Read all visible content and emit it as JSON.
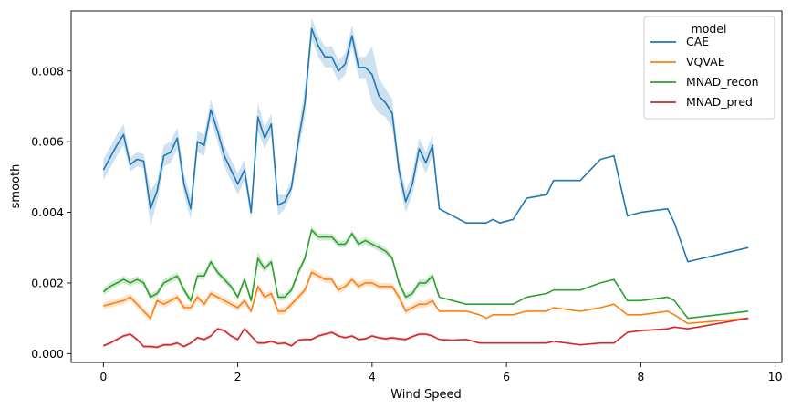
{
  "chart_data": {
    "type": "line",
    "xlabel": "Wind Speed",
    "ylabel": "smooth",
    "xlim": [
      -0.48,
      10.1
    ],
    "ylim": [
      -0.00025,
      0.0097
    ],
    "xticks": [
      0,
      2,
      4,
      6,
      8,
      10
    ],
    "xtick_labels": [
      "0",
      "2",
      "4",
      "6",
      "8",
      "10"
    ],
    "yticks": [
      0.0,
      0.002,
      0.004,
      0.006,
      0.008
    ],
    "ytick_labels": [
      "0.000",
      "0.002",
      "0.004",
      "0.006",
      "0.008"
    ],
    "grid": false,
    "legend": {
      "title": "model",
      "placement": "top-right"
    },
    "series": [
      {
        "name": "CAE",
        "color": "#1f77b4",
        "x": [
          0,
          0.1,
          0.2,
          0.3,
          0.4,
          0.5,
          0.6,
          0.7,
          0.8,
          0.9,
          1.0,
          1.1,
          1.2,
          1.3,
          1.4,
          1.5,
          1.6,
          1.7,
          1.8,
          1.9,
          2.0,
          2.1,
          2.2,
          2.3,
          2.4,
          2.5,
          2.6,
          2.7,
          2.8,
          2.9,
          3.0,
          3.1,
          3.2,
          3.3,
          3.4,
          3.5,
          3.6,
          3.7,
          3.8,
          3.9,
          4.0,
          4.1,
          4.2,
          4.3,
          4.4,
          4.5,
          4.6,
          4.7,
          4.8,
          4.9,
          5.0,
          5.2,
          5.4,
          5.6,
          5.7,
          5.8,
          5.9,
          6.1,
          6.3,
          6.6,
          6.7,
          7.1,
          7.4,
          7.6,
          7.8,
          8.0,
          8.4,
          8.5,
          8.7,
          9.6
        ],
        "y": [
          0.0052,
          0.00555,
          0.0059,
          0.0062,
          0.00535,
          0.0055,
          0.00545,
          0.0041,
          0.0046,
          0.0056,
          0.0057,
          0.0061,
          0.0048,
          0.0041,
          0.006,
          0.0059,
          0.0069,
          0.0063,
          0.0056,
          0.0052,
          0.0048,
          0.0052,
          0.004,
          0.0067,
          0.0061,
          0.0065,
          0.0042,
          0.0043,
          0.0047,
          0.006,
          0.0071,
          0.0092,
          0.0087,
          0.0084,
          0.0084,
          0.008,
          0.0082,
          0.009,
          0.0081,
          0.0081,
          0.0079,
          0.0073,
          0.0071,
          0.0068,
          0.0052,
          0.0043,
          0.0048,
          0.0058,
          0.0054,
          0.0059,
          0.0041,
          0.0039,
          0.0037,
          0.0037,
          0.0037,
          0.0038,
          0.0037,
          0.0038,
          0.0044,
          0.0045,
          0.0049,
          0.0049,
          0.0055,
          0.0056,
          0.0039,
          0.004,
          0.0041,
          0.0037,
          0.0026,
          0.003
        ],
        "band": [
          0.0003,
          0.0003,
          0.0003,
          0.0003,
          0.0002,
          0.0002,
          0.0002,
          0.0005,
          0.0003,
          0.0003,
          0.0003,
          0.0003,
          0.0003,
          0.0003,
          0.0003,
          0.0003,
          0.0003,
          0.0003,
          0.0003,
          0.0003,
          0.0003,
          0.0003,
          0.0002,
          0.0004,
          0.0003,
          0.0003,
          0.0003,
          0.0002,
          0.0002,
          0.0003,
          0.0004,
          0.0003,
          0.0003,
          0.0003,
          0.0003,
          0.0003,
          0.0003,
          0.0003,
          0.0003,
          0.0003,
          0.0008,
          0.0005,
          0.0004,
          0.0004,
          0.0003,
          0.0003,
          0.0003,
          0.0003,
          0.0003,
          0.0003,
          0.0,
          0.0,
          0.0,
          0.0,
          0.0,
          0.0,
          0.0,
          0.0,
          0.0,
          0.0,
          0.0,
          0.0,
          0.0,
          0.0,
          0.0,
          0.0,
          0.0,
          0.0,
          0.0,
          0.0
        ]
      },
      {
        "name": "VQVAE",
        "color": "#ff7f0e",
        "x": [
          0,
          0.1,
          0.2,
          0.3,
          0.4,
          0.5,
          0.6,
          0.7,
          0.8,
          0.9,
          1.0,
          1.1,
          1.2,
          1.3,
          1.4,
          1.5,
          1.6,
          1.7,
          1.8,
          1.9,
          2.0,
          2.1,
          2.2,
          2.3,
          2.4,
          2.5,
          2.6,
          2.7,
          2.8,
          2.9,
          3.0,
          3.1,
          3.2,
          3.3,
          3.4,
          3.5,
          3.6,
          3.7,
          3.8,
          3.9,
          4.0,
          4.1,
          4.2,
          4.3,
          4.4,
          4.5,
          4.6,
          4.7,
          4.8,
          4.9,
          5.0,
          5.2,
          5.4,
          5.6,
          5.7,
          5.8,
          5.9,
          6.1,
          6.3,
          6.6,
          6.7,
          7.1,
          7.4,
          7.6,
          7.8,
          8.0,
          8.4,
          8.5,
          8.7,
          9.6
        ],
        "y": [
          0.00135,
          0.0014,
          0.00145,
          0.0015,
          0.0016,
          0.0014,
          0.0012,
          0.001,
          0.0015,
          0.0014,
          0.0015,
          0.0016,
          0.0013,
          0.0013,
          0.0016,
          0.0014,
          0.0017,
          0.0016,
          0.0015,
          0.0014,
          0.0013,
          0.0015,
          0.0012,
          0.0019,
          0.0016,
          0.0017,
          0.0012,
          0.0012,
          0.0014,
          0.0016,
          0.0018,
          0.0023,
          0.0022,
          0.0021,
          0.0021,
          0.0018,
          0.0019,
          0.0021,
          0.0019,
          0.002,
          0.002,
          0.0019,
          0.0019,
          0.0019,
          0.0016,
          0.0012,
          0.0013,
          0.0014,
          0.0014,
          0.0015,
          0.0012,
          0.0012,
          0.0012,
          0.0011,
          0.001,
          0.0011,
          0.0011,
          0.0011,
          0.0012,
          0.0012,
          0.0013,
          0.0012,
          0.0013,
          0.0014,
          0.0011,
          0.0011,
          0.0012,
          0.0011,
          0.00085,
          0.001
        ],
        "band": [
          0.0001,
          0.0001,
          0.0001,
          0.0001,
          0.0001,
          0.0001,
          0.0001,
          0.0001,
          0.0001,
          0.0001,
          0.0001,
          0.0001,
          0.0001,
          0.0001,
          0.0001,
          0.0001,
          0.0001,
          0.0001,
          0.0001,
          0.0001,
          0.0001,
          0.0001,
          0.0001,
          0.0001,
          0.0001,
          0.0001,
          0.0001,
          0.0001,
          0.0001,
          0.0001,
          0.0001,
          0.0001,
          0.0001,
          0.0001,
          0.0001,
          0.0001,
          0.0001,
          0.0001,
          0.0001,
          0.0001,
          0.0001,
          0.0001,
          0.0001,
          0.0001,
          0.0001,
          0.0001,
          0.0001,
          0.0001,
          0.0001,
          0.0001,
          0.0,
          0.0,
          0.0,
          0.0,
          0.0,
          0.0,
          0.0,
          0.0,
          0.0,
          0.0,
          0.0,
          0.0,
          0.0,
          0.0,
          0.0,
          0.0,
          0.0,
          0.0,
          0.0,
          0.0
        ]
      },
      {
        "name": "MNAD_recon",
        "color": "#2ca02c",
        "x": [
          0,
          0.1,
          0.2,
          0.3,
          0.4,
          0.5,
          0.6,
          0.7,
          0.8,
          0.9,
          1.0,
          1.1,
          1.2,
          1.3,
          1.4,
          1.5,
          1.6,
          1.7,
          1.8,
          1.9,
          2.0,
          2.1,
          2.2,
          2.3,
          2.4,
          2.5,
          2.6,
          2.7,
          2.8,
          2.9,
          3.0,
          3.1,
          3.2,
          3.3,
          3.4,
          3.5,
          3.6,
          3.7,
          3.8,
          3.9,
          4.0,
          4.1,
          4.2,
          4.3,
          4.4,
          4.5,
          4.6,
          4.7,
          4.8,
          4.9,
          5.0,
          5.2,
          5.4,
          5.6,
          5.7,
          5.8,
          5.9,
          6.1,
          6.3,
          6.6,
          6.7,
          7.1,
          7.4,
          7.6,
          7.8,
          8.0,
          8.4,
          8.5,
          8.7,
          9.6
        ],
        "y": [
          0.00175,
          0.0019,
          0.002,
          0.0021,
          0.002,
          0.0021,
          0.002,
          0.0016,
          0.0017,
          0.002,
          0.0021,
          0.0022,
          0.0018,
          0.0015,
          0.0022,
          0.0022,
          0.0026,
          0.0023,
          0.0021,
          0.0019,
          0.0016,
          0.0021,
          0.0015,
          0.0027,
          0.0024,
          0.0026,
          0.0016,
          0.0016,
          0.0018,
          0.0023,
          0.0027,
          0.0035,
          0.0033,
          0.0033,
          0.0033,
          0.0031,
          0.0031,
          0.0034,
          0.0031,
          0.0032,
          0.0031,
          0.003,
          0.0029,
          0.0027,
          0.002,
          0.0016,
          0.0017,
          0.002,
          0.002,
          0.0022,
          0.0016,
          0.0015,
          0.0014,
          0.0014,
          0.0014,
          0.0014,
          0.0014,
          0.0014,
          0.0016,
          0.0017,
          0.0018,
          0.0018,
          0.002,
          0.0021,
          0.0015,
          0.0015,
          0.0016,
          0.0015,
          0.001,
          0.0012
        ],
        "band": [
          0.0001,
          0.0001,
          0.0001,
          0.0001,
          0.0001,
          0.0001,
          0.0001,
          0.0001,
          0.0001,
          0.0001,
          0.0001,
          0.0001,
          0.0001,
          0.0001,
          0.0001,
          0.0001,
          0.0001,
          0.0001,
          0.0001,
          0.0001,
          0.0001,
          0.0001,
          0.0001,
          0.0002,
          0.0001,
          0.0001,
          0.0001,
          0.0001,
          0.0001,
          0.0001,
          0.0001,
          0.0001,
          0.0001,
          0.0001,
          0.0001,
          0.0001,
          0.0001,
          0.0001,
          0.0001,
          0.0001,
          0.0001,
          0.0001,
          0.0001,
          0.0001,
          0.0001,
          0.0001,
          0.0001,
          0.0001,
          0.0001,
          0.0001,
          0.0,
          0.0,
          0.0,
          0.0,
          0.0,
          0.0,
          0.0,
          0.0,
          0.0,
          0.0,
          0.0,
          0.0,
          0.0,
          0.0,
          0.0,
          0.0,
          0.0,
          0.0,
          0.0,
          0.0
        ]
      },
      {
        "name": "MNAD_pred",
        "color": "#d62728",
        "x": [
          0,
          0.1,
          0.2,
          0.3,
          0.4,
          0.5,
          0.6,
          0.7,
          0.8,
          0.9,
          1.0,
          1.1,
          1.2,
          1.3,
          1.4,
          1.5,
          1.6,
          1.7,
          1.8,
          1.9,
          2.0,
          2.1,
          2.2,
          2.3,
          2.4,
          2.5,
          2.6,
          2.7,
          2.8,
          2.9,
          3.0,
          3.1,
          3.2,
          3.3,
          3.4,
          3.5,
          3.6,
          3.7,
          3.8,
          3.9,
          4.0,
          4.1,
          4.2,
          4.3,
          4.4,
          4.5,
          4.6,
          4.7,
          4.8,
          4.9,
          5.0,
          5.2,
          5.4,
          5.6,
          5.7,
          5.8,
          5.9,
          6.1,
          6.3,
          6.6,
          6.7,
          7.1,
          7.4,
          7.6,
          7.8,
          8.0,
          8.4,
          8.5,
          8.7,
          9.6
        ],
        "y": [
          0.00022,
          0.0003,
          0.0004,
          0.0005,
          0.00055,
          0.0004,
          0.0002,
          0.0002,
          0.00018,
          0.00025,
          0.00025,
          0.0003,
          0.0002,
          0.0003,
          0.00045,
          0.0004,
          0.0005,
          0.0007,
          0.00065,
          0.0005,
          0.0004,
          0.0007,
          0.0005,
          0.0003,
          0.0003,
          0.00035,
          0.00028,
          0.0003,
          0.00022,
          0.00038,
          0.0004,
          0.0004,
          0.0005,
          0.00055,
          0.0006,
          0.0005,
          0.00045,
          0.0005,
          0.0004,
          0.00042,
          0.0005,
          0.00045,
          0.00042,
          0.00045,
          0.00042,
          0.0004,
          0.00048,
          0.00055,
          0.00055,
          0.0005,
          0.0004,
          0.00038,
          0.0004,
          0.0003,
          0.0003,
          0.0003,
          0.0003,
          0.0003,
          0.0003,
          0.0003,
          0.00035,
          0.00025,
          0.0003,
          0.0003,
          0.0006,
          0.00065,
          0.0007,
          0.00075,
          0.0007,
          0.001
        ],
        "band": [
          4e-05,
          4e-05,
          4e-05,
          4e-05,
          4e-05,
          4e-05,
          4e-05,
          4e-05,
          4e-05,
          4e-05,
          4e-05,
          4e-05,
          4e-05,
          4e-05,
          4e-05,
          4e-05,
          4e-05,
          4e-05,
          4e-05,
          4e-05,
          4e-05,
          4e-05,
          4e-05,
          4e-05,
          4e-05,
          4e-05,
          4e-05,
          4e-05,
          4e-05,
          4e-05,
          4e-05,
          4e-05,
          4e-05,
          4e-05,
          4e-05,
          4e-05,
          4e-05,
          4e-05,
          4e-05,
          4e-05,
          4e-05,
          4e-05,
          4e-05,
          4e-05,
          4e-05,
          4e-05,
          4e-05,
          4e-05,
          4e-05,
          4e-05,
          0.0,
          0.0,
          0.0,
          0.0,
          0.0,
          0.0,
          0.0,
          0.0,
          0.0,
          0.0,
          0.0,
          0.0,
          0.0,
          0.0,
          0.0,
          0.0,
          0.0,
          0.0,
          0.0,
          0.0
        ]
      }
    ]
  }
}
